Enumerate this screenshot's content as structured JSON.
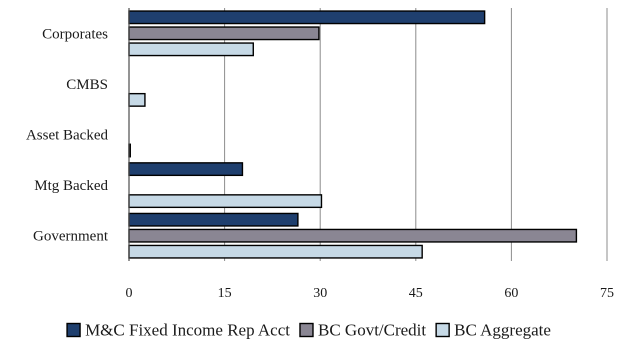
{
  "chart_data": {
    "type": "bar",
    "orientation": "horizontal",
    "categories": [
      "Government",
      "Mtg Backed",
      "Asset Backed",
      "CMBS",
      "Corporates"
    ],
    "series": [
      {
        "name": "M&C Fixed Income Rep Acct",
        "values": [
          26.5,
          17.8,
          0,
          0,
          55.8
        ],
        "color": "#1f3f6e"
      },
      {
        "name": "BC Govt/Credit",
        "values": [
          70.2,
          0,
          0,
          0,
          29.8
        ],
        "color": "#8a8693"
      },
      {
        "name": "BC Aggregate",
        "values": [
          46.0,
          30.2,
          0.2,
          2.5,
          19.5
        ],
        "color": "#c6d9e6"
      }
    ],
    "xlim": [
      0,
      75
    ],
    "xticks": [
      0,
      15,
      30,
      45,
      60,
      75
    ],
    "xtick_labels": [
      "0",
      "15",
      "30",
      "45",
      "60",
      "75"
    ],
    "grid": "vertical",
    "legend_position": "bottom",
    "title": "",
    "xlabel": "",
    "ylabel": ""
  }
}
